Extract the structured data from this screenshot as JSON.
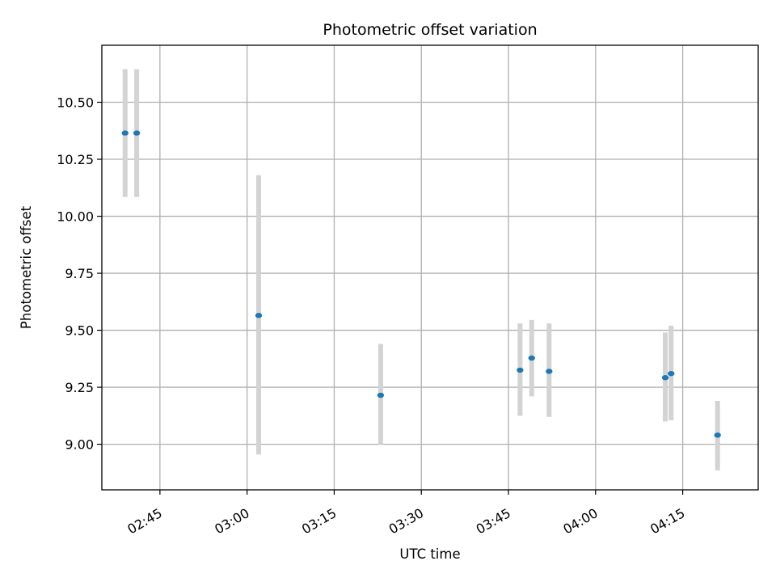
{
  "chart_data": {
    "type": "scatter",
    "title": "Photometric offset variation",
    "xlabel": "UTC time",
    "ylabel": "Photometric offset",
    "x_tick_labels": [
      "02:45",
      "03:00",
      "03:15",
      "03:30",
      "03:45",
      "04:00",
      "04:15"
    ],
    "x_ticks_minutes": [
      165,
      180,
      195,
      210,
      225,
      240,
      255
    ],
    "y_tick_labels": [
      "9.00",
      "9.25",
      "9.50",
      "9.75",
      "10.00",
      "10.25",
      "10.50"
    ],
    "y_ticks": [
      9.0,
      9.25,
      9.5,
      9.75,
      10.0,
      10.25,
      10.5
    ],
    "xlim": [
      "02:35",
      "04:28"
    ],
    "ylim": [
      8.8,
      10.75
    ],
    "grid": true,
    "colors": {
      "point": "#1f77b4",
      "errorbar": "#d3d3d3",
      "grid": "#b0b0b0"
    },
    "points": [
      {
        "x": "02:39",
        "y": 10.365,
        "yerr_low": 10.085,
        "yerr_high": 10.645
      },
      {
        "x": "02:41",
        "y": 10.365,
        "yerr_low": 10.085,
        "yerr_high": 10.645
      },
      {
        "x": "03:02",
        "y": 9.565,
        "yerr_low": 8.955,
        "yerr_high": 10.18
      },
      {
        "x": "03:23",
        "y": 9.215,
        "yerr_low": 9.0,
        "yerr_high": 9.44
      },
      {
        "x": "03:47",
        "y": 9.325,
        "yerr_low": 9.125,
        "yerr_high": 9.53
      },
      {
        "x": "03:49",
        "y": 9.378,
        "yerr_low": 9.21,
        "yerr_high": 9.545
      },
      {
        "x": "03:52",
        "y": 9.32,
        "yerr_low": 9.12,
        "yerr_high": 9.53
      },
      {
        "x": "04:12",
        "y": 9.292,
        "yerr_low": 9.1,
        "yerr_high": 9.49
      },
      {
        "x": "04:13",
        "y": 9.31,
        "yerr_low": 9.105,
        "yerr_high": 9.52
      },
      {
        "x": "04:21",
        "y": 9.04,
        "yerr_low": 8.885,
        "yerr_high": 9.19
      }
    ]
  }
}
